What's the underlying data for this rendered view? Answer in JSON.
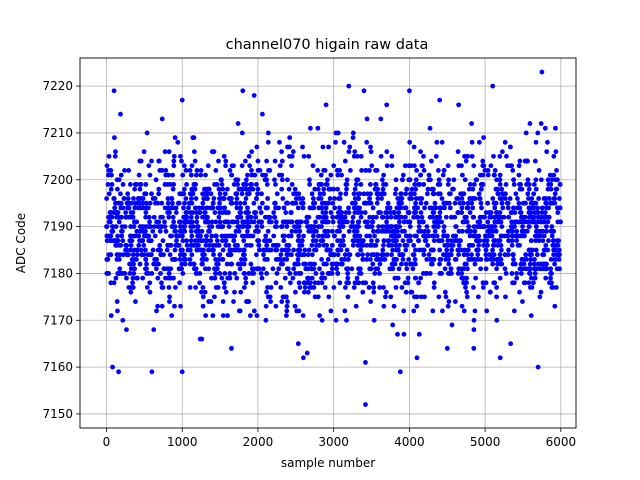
{
  "chart_data": {
    "type": "scatter",
    "title": "channel070 higain raw data",
    "xlabel": "sample number",
    "ylabel": "ADC Code",
    "xlim": [
      -350,
      6200
    ],
    "ylim": [
      7147,
      7226
    ],
    "xticks": [
      0,
      1000,
      2000,
      3000,
      4000,
      5000,
      6000
    ],
    "xtick_labels": [
      "0",
      "1000",
      "2000",
      "3000",
      "4000",
      "5000",
      "6000"
    ],
    "yticks": [
      7150,
      7160,
      7170,
      7180,
      7190,
      7200,
      7210,
      7220
    ],
    "ytick_labels": [
      "7150",
      "7160",
      "7170",
      "7180",
      "7190",
      "7200",
      "7210",
      "7220"
    ],
    "grid": true,
    "marker_color": "#0000ff",
    "series": [
      {
        "n_points": 6000,
        "x_range": [
          0,
          5999
        ],
        "baseline_mean": 7189.5,
        "core_band": [
          7175,
          7205
        ],
        "notable_points": [
          {
            "x": 3420,
            "y": 7152
          },
          {
            "x": 3200,
            "y": 7220
          },
          {
            "x": 5750,
            "y": 7223
          },
          {
            "x": 5100,
            "y": 7220
          },
          {
            "x": 1800,
            "y": 7219
          },
          {
            "x": 100,
            "y": 7219
          },
          {
            "x": 4000,
            "y": 7219
          },
          {
            "x": 3400,
            "y": 7219
          },
          {
            "x": 1950,
            "y": 7218
          },
          {
            "x": 1000,
            "y": 7217
          },
          {
            "x": 4400,
            "y": 7217
          },
          {
            "x": 2900,
            "y": 7216
          },
          {
            "x": 3700,
            "y": 7216
          },
          {
            "x": 4650,
            "y": 7216
          },
          {
            "x": 3420,
            "y": 7161
          },
          {
            "x": 80,
            "y": 7160
          },
          {
            "x": 600,
            "y": 7159
          },
          {
            "x": 1000,
            "y": 7159
          },
          {
            "x": 160,
            "y": 7159
          },
          {
            "x": 3880,
            "y": 7159
          },
          {
            "x": 5700,
            "y": 7160
          },
          {
            "x": 5200,
            "y": 7162
          },
          {
            "x": 4100,
            "y": 7162
          },
          {
            "x": 2600,
            "y": 7162
          },
          {
            "x": 2650,
            "y": 7163
          },
          {
            "x": 4850,
            "y": 7164
          },
          {
            "x": 4500,
            "y": 7164
          },
          {
            "x": 1650,
            "y": 7164
          }
        ]
      }
    ]
  }
}
